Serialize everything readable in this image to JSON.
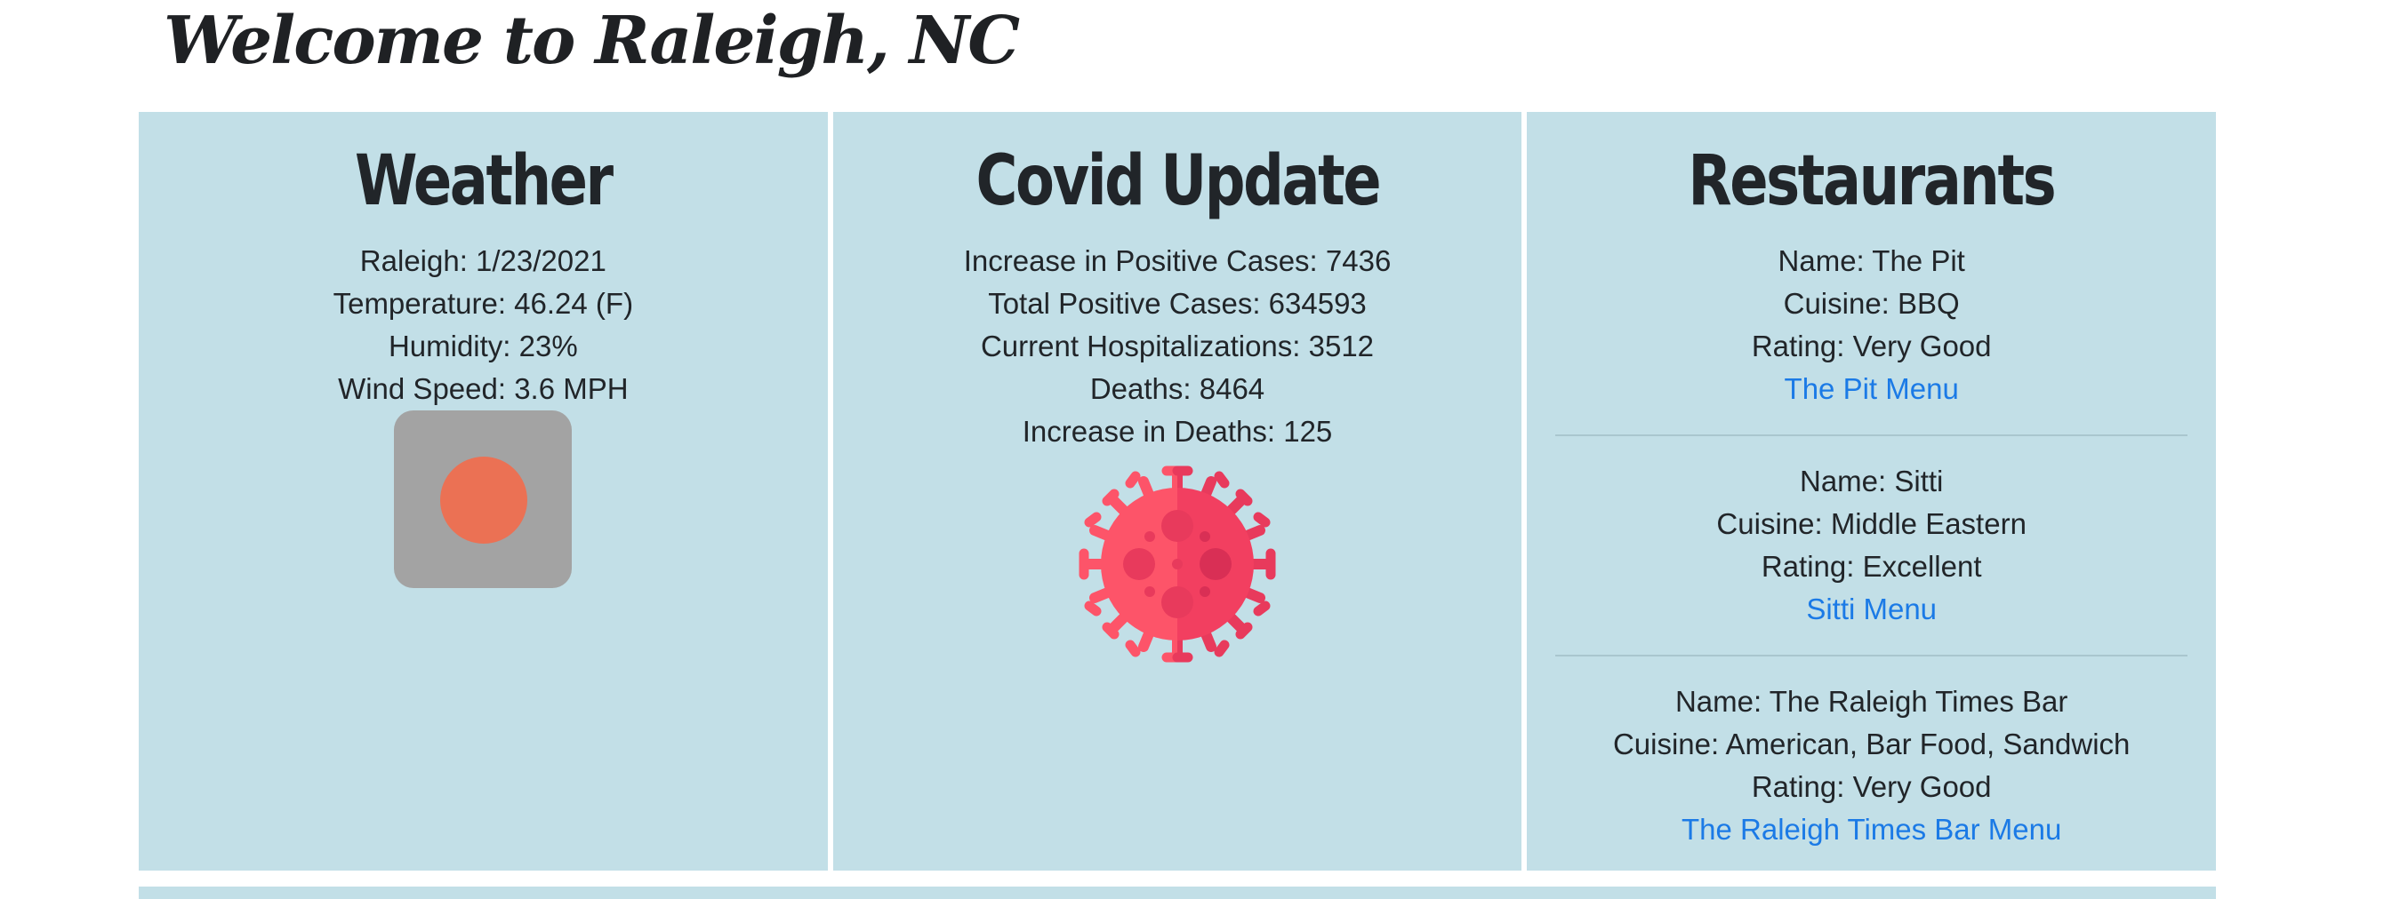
{
  "page": {
    "title": "Welcome to Raleigh, NC"
  },
  "weather": {
    "heading": "Weather",
    "lines": [
      "Raleigh: 1/23/2021",
      "Temperature: 46.24 (F)",
      "Humidity: 23%",
      "Wind Speed: 3.6 MPH"
    ],
    "icon": "clear-sky-icon",
    "icon_colors": {
      "background": "#a3a3a3",
      "sun": "#eb7154"
    }
  },
  "covid": {
    "heading": "Covid Update",
    "lines": [
      "Increase in Positive Cases: 7436",
      "Total Positive Cases: 634593",
      "Current Hospitalizations: 3512",
      "Deaths: 8464",
      "Increase in Deaths: 125"
    ],
    "icon": "virus-icon",
    "icon_colors": {
      "light": "#fd5469",
      "dark": "#e83a5c"
    }
  },
  "restaurants": {
    "heading": "Restaurants",
    "items": [
      {
        "name": "Name: The Pit",
        "cuisine": "Cuisine: BBQ",
        "rating": "Rating: Very Good",
        "menu_link": "The Pit Menu"
      },
      {
        "name": "Name: Sitti",
        "cuisine": "Cuisine: Middle Eastern",
        "rating": "Rating: Excellent",
        "menu_link": "Sitti Menu"
      },
      {
        "name": "Name: The Raleigh Times Bar",
        "cuisine": "Cuisine: American, Bar Food, Sandwich",
        "rating": "Rating: Very Good",
        "menu_link": "The Raleigh Times Bar Menu"
      }
    ]
  },
  "colors": {
    "card_background": "#c2dfe7",
    "link": "#1b7ae6",
    "text": "#212529"
  }
}
